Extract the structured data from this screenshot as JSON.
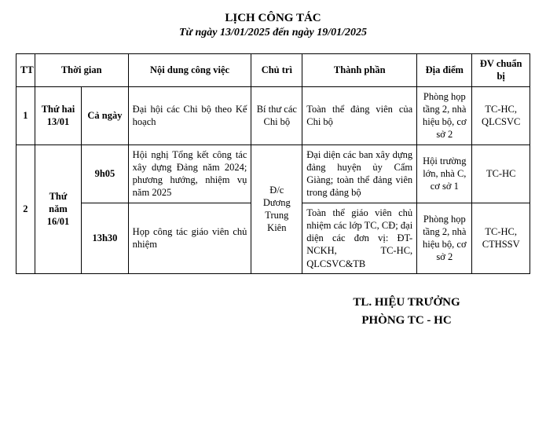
{
  "header": {
    "title": "LỊCH CÔNG TÁC",
    "subtitle": "Từ ngày 13/01/2025 đến ngày 19/01/2025"
  },
  "columns": {
    "tt": "TT",
    "thoigian": "Thời gian",
    "noidung": "Nội dung công việc",
    "chutri": "Chủ trì",
    "thanhphan": "Thành phần",
    "diadiem": "Địa điểm",
    "dvchuanbi": "ĐV chuẩn bị"
  },
  "row1": {
    "tt": "1",
    "day": "Thứ hai 13/01",
    "time": "Cả ngày",
    "noidung": "Đại hội các Chi bộ theo Kế hoạch",
    "chutri": "Bí thư các Chi bộ",
    "thanhphan": "Toàn thể đảng viên của Chi bộ",
    "diadiem": "Phòng họp tầng 2, nhà hiệu bộ, cơ sở 2",
    "dv": "TC-HC, QLCSVC"
  },
  "row2": {
    "tt": "2",
    "day": "Thứ năm 16/01",
    "a": {
      "time": "9h05",
      "noidung": "Hội nghị Tổng kết công tác xây dựng Đảng năm 2024; phương hướng, nhiệm vụ năm 2025",
      "thanhphan": "Đại diện các ban xây dựng đảng huyện ủy Cẩm Giàng; toàn thể đảng viên trong đảng bộ",
      "diadiem": "Hội trường lớn, nhà C, cơ sở 1",
      "dv": "TC-HC"
    },
    "chutri": "Đ/c Dương Trung Kiên",
    "b": {
      "time": "13h30",
      "noidung": "Họp công tác giáo viên chủ nhiệm",
      "thanhphan": "Toàn thể giáo viên chủ nhiệm các lớp TC, CĐ; đại diện các đơn vị: ĐT-NCKH, TC-HC, QLCSVC&TB",
      "diadiem": "Phòng họp tầng 2, nhà hiệu bộ, cơ sở 2",
      "dv": "TC-HC, CTHSSV"
    }
  },
  "footer": {
    "line1": "TL. HIỆU TRƯỞNG",
    "line2": "PHÒNG TC - HC"
  },
  "widths": {
    "tt": "22px",
    "day": "55px",
    "time": "55px",
    "noidung": "145px",
    "chutri": "60px",
    "thanhphan": "135px",
    "diadiem": "65px",
    "dv": "68px"
  }
}
